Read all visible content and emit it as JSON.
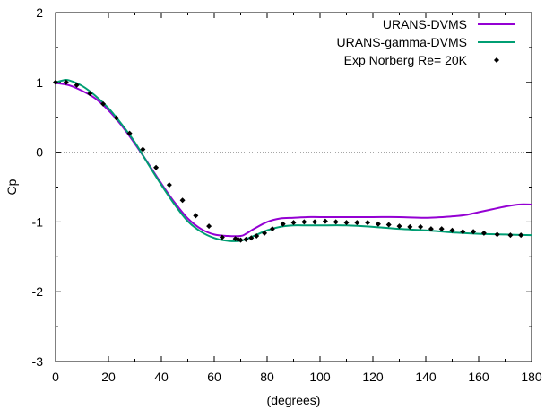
{
  "chart_data": {
    "type": "line",
    "title": "",
    "xlabel": "(degrees)",
    "ylabel": "Cp",
    "xlim": [
      0,
      180
    ],
    "ylim": [
      -3,
      2
    ],
    "x_ticks": [
      0,
      20,
      40,
      60,
      80,
      100,
      120,
      140,
      160,
      180
    ],
    "y_ticks": [
      -3,
      -2,
      -1,
      0,
      1,
      2
    ],
    "x_tick_labels": [
      "0",
      "20",
      "40",
      "60",
      "80",
      "100",
      "120",
      "140",
      "160",
      "180"
    ],
    "y_tick_labels": [
      "-3",
      "-2",
      "-1",
      "0",
      "1",
      "2"
    ],
    "zero_line": true,
    "grid": false,
    "legend_position": "top-right",
    "series": [
      {
        "name": "URANS-DVMS",
        "kind": "line",
        "color": "#9400d3",
        "x": [
          0,
          5,
          10,
          15,
          20,
          25,
          30,
          35,
          40,
          45,
          50,
          55,
          60,
          65,
          70,
          72,
          75,
          80,
          85,
          90,
          95,
          100,
          110,
          120,
          130,
          140,
          150,
          155,
          160,
          165,
          170,
          175,
          180
        ],
        "y": [
          0.99,
          0.96,
          0.88,
          0.77,
          0.6,
          0.38,
          0.12,
          -0.16,
          -0.45,
          -0.72,
          -0.95,
          -1.1,
          -1.18,
          -1.2,
          -1.2,
          -1.17,
          -1.1,
          -1.0,
          -0.95,
          -0.94,
          -0.93,
          -0.93,
          -0.93,
          -0.93,
          -0.93,
          -0.94,
          -0.92,
          -0.9,
          -0.86,
          -0.82,
          -0.78,
          -0.75,
          -0.75
        ]
      },
      {
        "name": "URANS-gamma-DVMS",
        "kind": "line",
        "color": "#009e73",
        "x": [
          0,
          3,
          5,
          10,
          15,
          20,
          25,
          30,
          35,
          40,
          45,
          50,
          55,
          60,
          65,
          70,
          75,
          80,
          85,
          90,
          95,
          100,
          110,
          120,
          130,
          140,
          150,
          160,
          170,
          180
        ],
        "y": [
          1.0,
          1.03,
          1.03,
          0.95,
          0.81,
          0.63,
          0.4,
          0.14,
          -0.17,
          -0.47,
          -0.75,
          -0.99,
          -1.14,
          -1.23,
          -1.27,
          -1.27,
          -1.2,
          -1.12,
          -1.07,
          -1.05,
          -1.05,
          -1.05,
          -1.05,
          -1.07,
          -1.1,
          -1.12,
          -1.15,
          -1.17,
          -1.18,
          -1.19
        ]
      },
      {
        "name": "Exp Norberg Re= 20K",
        "kind": "points",
        "color": "#000000",
        "x": [
          0,
          4,
          8,
          13,
          18,
          23,
          28,
          33,
          38,
          43,
          48,
          53,
          58,
          63,
          68,
          69,
          70,
          72,
          74,
          76,
          79,
          82,
          86,
          90,
          94,
          98,
          102,
          106,
          110,
          114,
          118,
          122,
          126,
          130,
          134,
          138,
          142,
          146,
          150,
          154,
          158,
          162,
          167,
          172,
          176
        ],
        "y": [
          1.0,
          1.0,
          0.96,
          0.84,
          0.69,
          0.49,
          0.27,
          0.04,
          -0.22,
          -0.47,
          -0.69,
          -0.91,
          -1.06,
          -1.22,
          -1.24,
          -1.25,
          -1.26,
          -1.25,
          -1.23,
          -1.2,
          -1.16,
          -1.1,
          -1.03,
          -1.01,
          -1.0,
          -1.0,
          -0.99,
          -1.0,
          -1.01,
          -1.01,
          -1.01,
          -1.03,
          -1.04,
          -1.06,
          -1.07,
          -1.07,
          -1.1,
          -1.1,
          -1.12,
          -1.14,
          -1.14,
          -1.16,
          -1.18,
          -1.19,
          -1.19
        ]
      }
    ]
  }
}
